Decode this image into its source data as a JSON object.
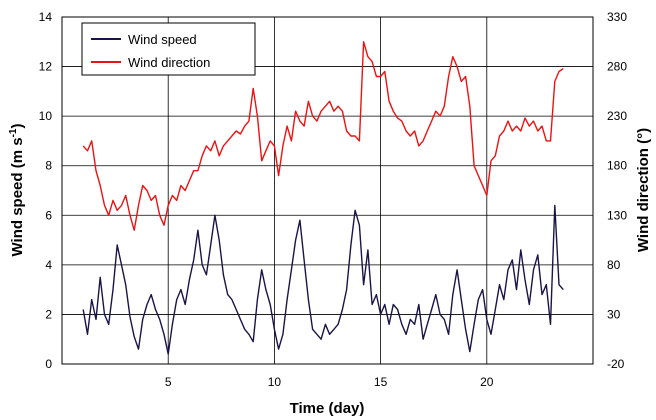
{
  "chart_data": {
    "type": "line",
    "xlabel": "Time (day)",
    "ylabel_left": "Wind speed (m s",
    "ylabel_left_sup": "-1",
    "ylabel_left_end": ")",
    "ylabel_right": "Wind direction (°)",
    "xlim": [
      0,
      25
    ],
    "xticks": [
      5,
      10,
      15,
      20
    ],
    "ylim_left": [
      0,
      14
    ],
    "yticks_left": [
      0,
      2,
      4,
      6,
      8,
      10,
      12,
      14
    ],
    "ylim_right": [
      -20,
      330
    ],
    "yticks_right": [
      -20,
      30,
      80,
      130,
      180,
      230,
      280,
      330
    ],
    "grid": true,
    "legend_position": "top-left",
    "series": [
      {
        "name": "Wind speed",
        "axis": "left",
        "color": "#1a1446",
        "x": [
          1.0,
          1.2,
          1.4,
          1.6,
          1.8,
          2.0,
          2.2,
          2.4,
          2.6,
          2.8,
          3.0,
          3.2,
          3.4,
          3.6,
          3.8,
          4.0,
          4.2,
          4.4,
          4.6,
          4.8,
          5.0,
          5.2,
          5.4,
          5.6,
          5.8,
          6.0,
          6.2,
          6.4,
          6.6,
          6.8,
          7.0,
          7.2,
          7.4,
          7.6,
          7.8,
          8.0,
          8.2,
          8.4,
          8.6,
          8.8,
          9.0,
          9.2,
          9.4,
          9.6,
          9.8,
          10.0,
          10.2,
          10.4,
          10.6,
          10.8,
          11.0,
          11.2,
          11.4,
          11.6,
          11.8,
          12.0,
          12.2,
          12.4,
          12.6,
          12.8,
          13.0,
          13.2,
          13.4,
          13.6,
          13.8,
          14.0,
          14.2,
          14.4,
          14.6,
          14.8,
          15.0,
          15.2,
          15.4,
          15.6,
          15.8,
          16.0,
          16.2,
          16.4,
          16.6,
          16.8,
          17.0,
          17.2,
          17.4,
          17.6,
          17.8,
          18.0,
          18.2,
          18.4,
          18.6,
          18.8,
          19.0,
          19.2,
          19.4,
          19.6,
          19.8,
          20.0,
          20.2,
          20.4,
          20.6,
          20.8,
          21.0,
          21.2,
          21.4,
          21.6,
          21.8,
          22.0,
          22.2,
          22.4,
          22.6,
          22.8,
          23.0,
          23.2,
          23.4,
          23.6
        ],
        "values": [
          2.2,
          1.2,
          2.6,
          1.8,
          3.5,
          2.0,
          1.6,
          3.0,
          4.8,
          4.0,
          3.2,
          1.9,
          1.1,
          0.6,
          1.8,
          2.4,
          2.8,
          2.2,
          1.8,
          1.2,
          0.4,
          1.6,
          2.6,
          3.0,
          2.4,
          3.4,
          4.2,
          5.4,
          4.0,
          3.6,
          4.8,
          6.0,
          5.0,
          3.6,
          2.8,
          2.6,
          2.2,
          1.8,
          1.4,
          1.2,
          0.9,
          2.6,
          3.8,
          3.0,
          2.4,
          1.4,
          0.6,
          1.2,
          2.6,
          3.8,
          5.0,
          5.8,
          4.2,
          2.6,
          1.4,
          1.2,
          1.0,
          1.6,
          1.2,
          1.4,
          1.6,
          2.2,
          3.0,
          4.8,
          6.2,
          5.6,
          3.2,
          4.6,
          2.4,
          2.8,
          2.0,
          2.4,
          1.6,
          2.4,
          2.2,
          1.6,
          1.2,
          1.8,
          1.6,
          2.4,
          1.0,
          1.6,
          2.2,
          2.8,
          2.0,
          1.8,
          1.2,
          2.8,
          3.8,
          2.6,
          1.4,
          0.5,
          1.6,
          2.6,
          3.0,
          1.8,
          1.2,
          2.2,
          3.2,
          2.6,
          3.8,
          4.2,
          3.0,
          4.6,
          3.4,
          2.4,
          3.8,
          4.4,
          2.8,
          3.2,
          1.6,
          6.4,
          3.2,
          3.0
        ]
      },
      {
        "name": "Wind direction",
        "axis": "right",
        "color": "#ee1111",
        "x": [
          1.0,
          1.2,
          1.4,
          1.6,
          1.8,
          2.0,
          2.2,
          2.4,
          2.6,
          2.8,
          3.0,
          3.2,
          3.4,
          3.6,
          3.8,
          4.0,
          4.2,
          4.4,
          4.6,
          4.8,
          5.0,
          5.2,
          5.4,
          5.6,
          5.8,
          6.0,
          6.2,
          6.4,
          6.6,
          6.8,
          7.0,
          7.2,
          7.4,
          7.6,
          7.8,
          8.0,
          8.2,
          8.4,
          8.6,
          8.8,
          9.0,
          9.2,
          9.4,
          9.6,
          9.8,
          10.0,
          10.2,
          10.4,
          10.6,
          10.8,
          11.0,
          11.2,
          11.4,
          11.6,
          11.8,
          12.0,
          12.2,
          12.4,
          12.6,
          12.8,
          13.0,
          13.2,
          13.4,
          13.6,
          13.8,
          14.0,
          14.2,
          14.4,
          14.6,
          14.8,
          15.0,
          15.2,
          15.4,
          15.6,
          15.8,
          16.0,
          16.2,
          16.4,
          16.6,
          16.8,
          17.0,
          17.2,
          17.4,
          17.6,
          17.8,
          18.0,
          18.2,
          18.4,
          18.6,
          18.8,
          19.0,
          19.2,
          19.4,
          19.6,
          19.8,
          20.0,
          20.2,
          20.4,
          20.6,
          20.8,
          21.0,
          21.2,
          21.4,
          21.6,
          21.8,
          22.0,
          22.2,
          22.4,
          22.6,
          22.8,
          23.0,
          23.2,
          23.4,
          23.6
        ],
        "values": [
          200,
          195,
          205,
          175,
          160,
          140,
          130,
          145,
          135,
          140,
          150,
          130,
          115,
          140,
          160,
          155,
          145,
          150,
          130,
          120,
          140,
          150,
          145,
          160,
          155,
          165,
          175,
          175,
          190,
          200,
          195,
          205,
          190,
          200,
          205,
          210,
          215,
          212,
          220,
          225,
          258,
          230,
          185,
          195,
          205,
          200,
          170,
          200,
          220,
          205,
          235,
          225,
          220,
          245,
          230,
          225,
          235,
          240,
          245,
          235,
          240,
          235,
          215,
          210,
          210,
          205,
          305,
          290,
          285,
          270,
          270,
          275,
          245,
          235,
          228,
          225,
          215,
          210,
          215,
          200,
          205,
          215,
          225,
          235,
          230,
          240,
          270,
          290,
          280,
          265,
          270,
          240,
          180,
          170,
          160,
          150,
          185,
          190,
          210,
          215,
          225,
          215,
          220,
          215,
          228,
          220,
          225,
          215,
          220,
          205,
          205,
          265,
          275,
          278
        ]
      }
    ]
  },
  "legend": {
    "speed_label": "Wind speed",
    "direction_label": "Wind direction"
  }
}
